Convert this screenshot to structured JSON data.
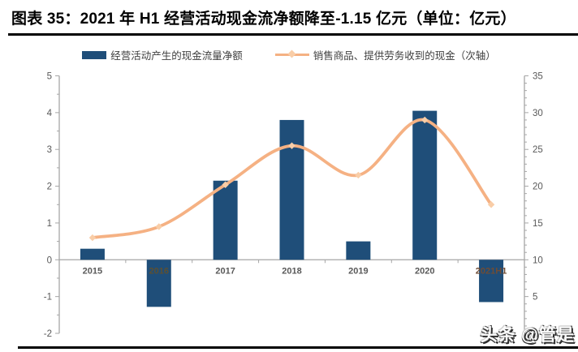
{
  "header": {
    "title": "图表 35：2021 年 H1 经营活动现金流净额降至-1.15 亿元（单位：亿元）"
  },
  "watermark": {
    "text": "头条 @管是"
  },
  "chart_data": {
    "type": "bar+line combo",
    "categories": [
      "2015",
      "2016",
      "2017",
      "2018",
      "2019",
      "2020",
      "2021H1"
    ],
    "series": [
      {
        "name": "经营活动产生的现金流量净额",
        "type": "bar",
        "axis": "left",
        "color": "#1F4E79",
        "values": [
          0.3,
          -1.28,
          2.15,
          3.8,
          0.5,
          4.05,
          -1.15
        ]
      },
      {
        "name": "销售商品、提供劳务收到的现金（次轴）",
        "type": "line",
        "axis": "right",
        "color": "#F5B183",
        "marker_color": "#F9CDA7",
        "values": [
          13,
          14.5,
          20.2,
          25.5,
          21.5,
          29,
          17.5
        ]
      }
    ],
    "left_axis": {
      "min": -2,
      "max": 5,
      "major_step": 1,
      "minor_step": 0.5,
      "tick_labels": [
        5,
        4,
        3,
        2,
        1,
        0,
        -1,
        -2
      ]
    },
    "right_axis": {
      "min": 0,
      "max": 35,
      "major_step": 5,
      "minor_step": 1,
      "tick_labels": [
        35,
        30,
        25,
        20,
        15,
        10,
        5
      ]
    },
    "x_axis": {
      "label_color": "#595959",
      "overlap_label_colors": {
        "2016": "#5E5031",
        "2021H1": "#6F4C35"
      }
    },
    "grid": false,
    "legend_position": "top",
    "colors": {
      "axis_line": "#A6A6A6",
      "tick_label": "#595959",
      "title_text": "#000000",
      "rule": "#000000",
      "background": "#FFFFFF"
    }
  }
}
